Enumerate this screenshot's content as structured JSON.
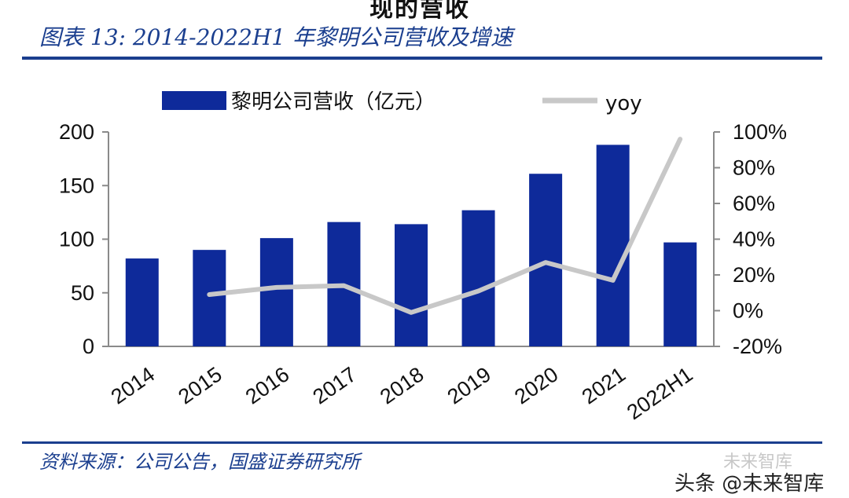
{
  "page": {
    "top_cut_text": "现的营收",
    "title": "图表 13: 2014-2022H1 年黎明公司营收及增速",
    "source": "资料来源：公司公告，国盛证券研究所",
    "watermark_faint": "未来智库",
    "watermark": "头条 @未来智库"
  },
  "colors": {
    "bar": "#0e2a9a",
    "line": "#c8c8c8",
    "accent": "#1a3e8e"
  },
  "chart_data": {
    "type": "bar",
    "categories": [
      "2014",
      "2015",
      "2016",
      "2017",
      "2018",
      "2019",
      "2020",
      "2021",
      "2022H1"
    ],
    "series": [
      {
        "name": "黎明公司营收（亿元）",
        "type": "bar",
        "axis": "left",
        "values": [
          82,
          90,
          101,
          116,
          114,
          127,
          161,
          188,
          97
        ]
      },
      {
        "name": "yoy",
        "type": "line",
        "axis": "right",
        "values": [
          null,
          9,
          13,
          14,
          -1,
          11,
          27,
          17,
          96
        ]
      }
    ],
    "y_left": {
      "range": [
        0,
        200
      ],
      "ticks": [
        "0",
        "50",
        "100",
        "150",
        "200"
      ]
    },
    "y_right": {
      "range": [
        -20,
        100
      ],
      "ticks": [
        "-20%",
        "0%",
        "20%",
        "40%",
        "60%",
        "80%",
        "100%"
      ]
    },
    "grid": false,
    "legend_position": "top"
  }
}
